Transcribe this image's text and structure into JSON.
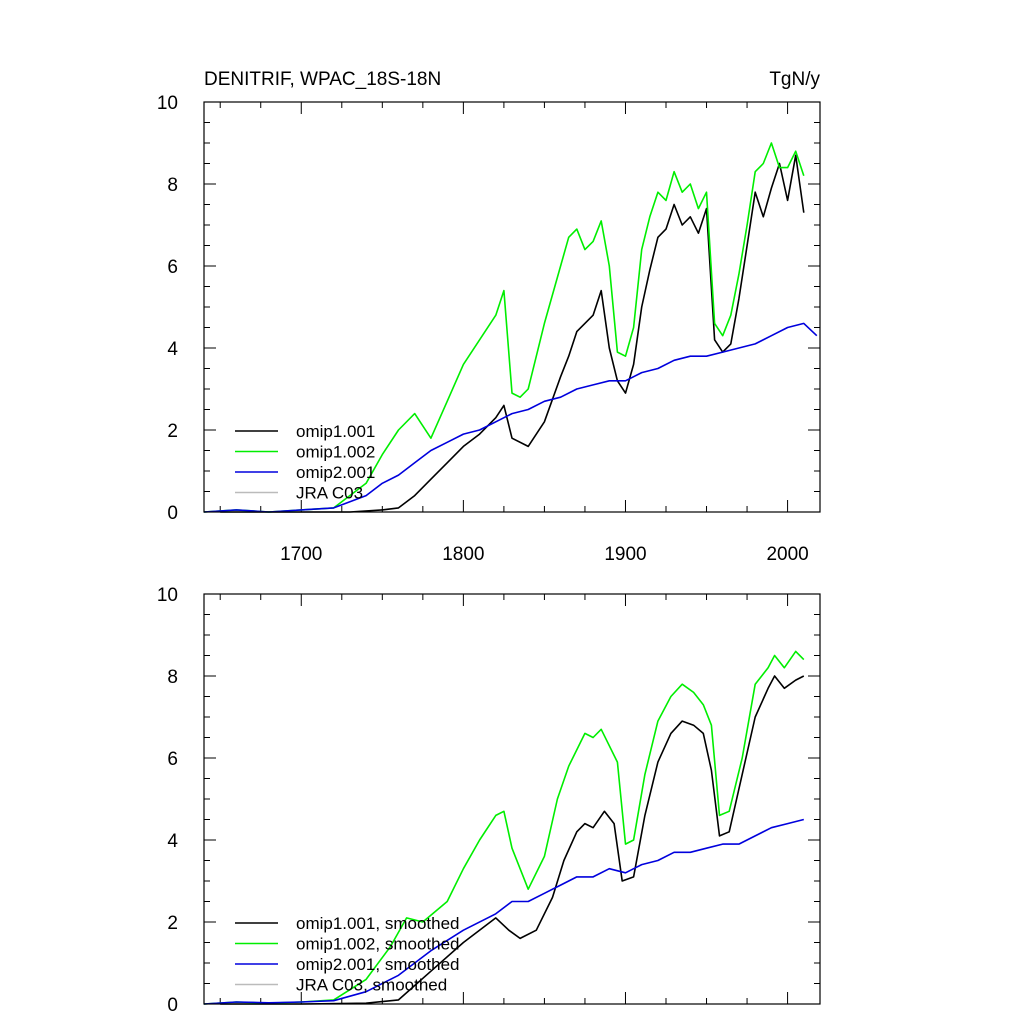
{
  "figure": {
    "title_left": "DENITRIF, WPAC_18S-18N",
    "title_right": "TgN/y"
  },
  "chart_data": [
    {
      "type": "line",
      "panel": "top",
      "xlim": [
        1640,
        2020
      ],
      "ylim": [
        0,
        10
      ],
      "xticks": [
        1700,
        1800,
        1900,
        2000
      ],
      "yticks": [
        0,
        2,
        4,
        6,
        8,
        10
      ],
      "legend_position": "lower-left",
      "series": [
        {
          "name": "omip1.001",
          "color": "#000000",
          "x": [
            1650,
            1700,
            1730,
            1750,
            1760,
            1770,
            1780,
            1790,
            1800,
            1810,
            1820,
            1825,
            1830,
            1840,
            1850,
            1860,
            1865,
            1870,
            1875,
            1880,
            1885,
            1890,
            1895,
            1900,
            1905,
            1910,
            1915,
            1920,
            1925,
            1930,
            1935,
            1940,
            1945,
            1950,
            1955,
            1960,
            1965,
            1970,
            1975,
            1980,
            1985,
            1990,
            1995,
            2000,
            2005,
            2010
          ],
          "y": [
            0,
            0,
            0,
            0.05,
            0.1,
            0.4,
            0.8,
            1.2,
            1.6,
            1.9,
            2.3,
            2.6,
            1.8,
            1.6,
            2.2,
            3.3,
            3.8,
            4.4,
            4.6,
            4.8,
            5.4,
            4.0,
            3.2,
            2.9,
            3.6,
            5.0,
            5.9,
            6.7,
            6.9,
            7.5,
            7.0,
            7.2,
            6.8,
            7.4,
            4.2,
            3.9,
            4.1,
            5.2,
            6.5,
            7.8,
            7.2,
            7.9,
            8.5,
            7.6,
            8.7,
            7.3
          ]
        },
        {
          "name": "omip1.002",
          "color": "#00ee00",
          "x": [
            1640,
            1660,
            1680,
            1700,
            1720,
            1740,
            1750,
            1760,
            1770,
            1780,
            1790,
            1800,
            1810,
            1820,
            1825,
            1830,
            1835,
            1840,
            1850,
            1860,
            1865,
            1870,
            1875,
            1880,
            1885,
            1890,
            1895,
            1900,
            1905,
            1910,
            1915,
            1920,
            1925,
            1930,
            1935,
            1940,
            1945,
            1950,
            1955,
            1960,
            1965,
            1970,
            1975,
            1980,
            1985,
            1990,
            1995,
            2000,
            2005,
            2010
          ],
          "y": [
            0,
            0.05,
            0,
            0.05,
            0.1,
            0.7,
            1.4,
            2.0,
            2.4,
            1.8,
            2.7,
            3.6,
            4.2,
            4.8,
            5.4,
            2.9,
            2.8,
            3.0,
            4.6,
            6.0,
            6.7,
            6.9,
            6.4,
            6.6,
            7.1,
            6.0,
            3.9,
            3.8,
            4.5,
            6.4,
            7.2,
            7.8,
            7.6,
            8.3,
            7.8,
            8.0,
            7.4,
            7.8,
            4.6,
            4.3,
            4.8,
            5.8,
            7.0,
            8.3,
            8.5,
            9.0,
            8.4,
            8.4,
            8.8,
            8.2
          ]
        },
        {
          "name": "omip2.001",
          "color": "#0000dd",
          "x": [
            1640,
            1660,
            1680,
            1700,
            1720,
            1740,
            1750,
            1760,
            1770,
            1780,
            1790,
            1800,
            1810,
            1820,
            1830,
            1840,
            1850,
            1860,
            1870,
            1880,
            1890,
            1900,
            1910,
            1920,
            1930,
            1940,
            1950,
            1960,
            1970,
            1980,
            1990,
            2000,
            2010,
            2018
          ],
          "y": [
            0,
            0.05,
            0,
            0.05,
            0.1,
            0.4,
            0.7,
            0.9,
            1.2,
            1.5,
            1.7,
            1.9,
            2.0,
            2.2,
            2.4,
            2.5,
            2.7,
            2.8,
            3.0,
            3.1,
            3.2,
            3.2,
            3.4,
            3.5,
            3.7,
            3.8,
            3.8,
            3.9,
            4.0,
            4.1,
            4.3,
            4.5,
            4.6,
            4.3
          ]
        },
        {
          "name": "JRA C03",
          "color": "#bbbbbb",
          "x": [],
          "y": []
        }
      ]
    },
    {
      "type": "line",
      "panel": "bottom",
      "xlim": [
        1640,
        2020
      ],
      "ylim": [
        0,
        10
      ],
      "yticks": [
        0,
        2,
        4,
        6,
        8,
        10
      ],
      "legend_position": "lower-left",
      "series": [
        {
          "name": "omip1.001, smoothed",
          "color": "#000000",
          "x": [
            1650,
            1700,
            1740,
            1760,
            1780,
            1800,
            1820,
            1828,
            1835,
            1845,
            1855,
            1862,
            1870,
            1875,
            1880,
            1887,
            1893,
            1898,
            1905,
            1912,
            1920,
            1928,
            1935,
            1942,
            1948,
            1953,
            1958,
            1964,
            1972,
            1980,
            1988,
            1992,
            1998,
            2005,
            2010
          ],
          "y": [
            0,
            0,
            0.02,
            0.1,
            0.8,
            1.5,
            2.1,
            1.8,
            1.6,
            1.8,
            2.6,
            3.5,
            4.2,
            4.4,
            4.3,
            4.7,
            4.4,
            3.0,
            3.1,
            4.6,
            5.9,
            6.6,
            6.9,
            6.8,
            6.6,
            5.7,
            4.1,
            4.2,
            5.6,
            7.0,
            7.7,
            8.0,
            7.7,
            7.9,
            8.0
          ]
        },
        {
          "name": "omip1.002, smoothed",
          "color": "#00ee00",
          "x": [
            1640,
            1660,
            1680,
            1700,
            1720,
            1740,
            1755,
            1765,
            1775,
            1790,
            1800,
            1810,
            1820,
            1825,
            1830,
            1840,
            1850,
            1858,
            1865,
            1875,
            1880,
            1885,
            1895,
            1900,
            1905,
            1912,
            1920,
            1928,
            1935,
            1942,
            1948,
            1953,
            1958,
            1964,
            1972,
            1980,
            1988,
            1992,
            1998,
            2005,
            2010
          ],
          "y": [
            0,
            0.05,
            0.02,
            0.05,
            0.1,
            0.6,
            1.4,
            2.1,
            2.0,
            2.5,
            3.3,
            4.0,
            4.6,
            4.7,
            3.8,
            2.8,
            3.6,
            5.0,
            5.8,
            6.6,
            6.5,
            6.7,
            5.9,
            3.9,
            4.0,
            5.6,
            6.9,
            7.5,
            7.8,
            7.6,
            7.3,
            6.8,
            4.6,
            4.7,
            6.0,
            7.8,
            8.2,
            8.5,
            8.2,
            8.6,
            8.4
          ]
        },
        {
          "name": "omip2.001, smoothed",
          "color": "#0000dd",
          "x": [
            1640,
            1660,
            1680,
            1700,
            1720,
            1740,
            1760,
            1780,
            1800,
            1820,
            1830,
            1840,
            1850,
            1860,
            1870,
            1880,
            1890,
            1900,
            1910,
            1920,
            1930,
            1940,
            1950,
            1960,
            1970,
            1980,
            1990,
            2000,
            2010
          ],
          "y": [
            0,
            0.05,
            0.03,
            0.05,
            0.08,
            0.3,
            0.7,
            1.3,
            1.8,
            2.2,
            2.5,
            2.5,
            2.7,
            2.9,
            3.1,
            3.1,
            3.3,
            3.2,
            3.4,
            3.5,
            3.7,
            3.7,
            3.8,
            3.9,
            3.9,
            4.1,
            4.3,
            4.4,
            4.5
          ]
        },
        {
          "name": "JRA C03, smoothed",
          "color": "#bbbbbb",
          "x": [],
          "y": []
        }
      ]
    }
  ]
}
